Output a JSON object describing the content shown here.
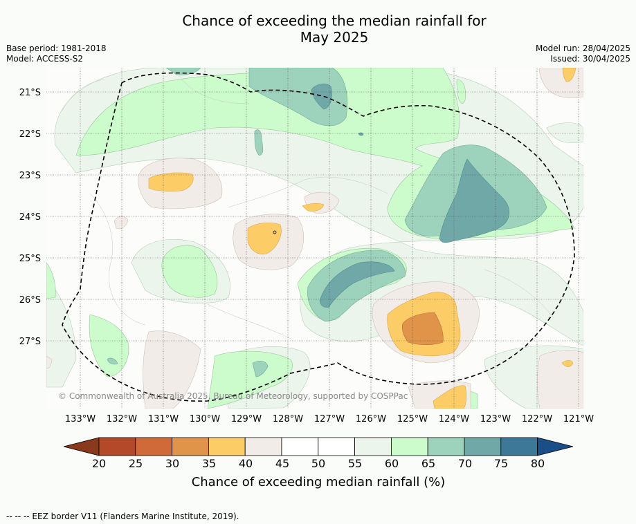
{
  "title_line1": "Chance of exceeding the median rainfall for",
  "title_line2": "May 2025",
  "base_period": "Base period: 1981-2018",
  "model": "Model: ACCESS-S2",
  "model_run": "Model run: 28/04/2025",
  "issued": "Issued: 30/04/2025",
  "copyright": "© Commonwealth of Australia 2025, Bureau of Meteorology, supported by COSPPac",
  "footer": "-- -- -- EEZ border V11 (Flanders Marine Institute, 2019).",
  "lat_labels": [
    "21°S",
    "22°S",
    "23°S",
    "24°S",
    "25°S",
    "26°S",
    "27°S"
  ],
  "lon_labels": [
    "133°W",
    "132°W",
    "131°W",
    "130°W",
    "129°W",
    "128°W",
    "127°W",
    "126°W",
    "125°W",
    "124°W",
    "123°W",
    "122°W",
    "121°W"
  ],
  "colorbar": {
    "title": "Chance of exceeding median rainfall (%)",
    "ticks": [
      "20",
      "25",
      "30",
      "35",
      "40",
      "45",
      "50",
      "55",
      "60",
      "65",
      "70",
      "75",
      "80"
    ],
    "colors": [
      "#8a3a1c",
      "#b4492a",
      "#d06a38",
      "#e0944a",
      "#fccc66",
      "#f2ece8",
      "#ffffff",
      "#ffffff",
      "#ecf5ec",
      "#ccfccc",
      "#9dd2bc",
      "#70a8a8",
      "#3e7898",
      "#1a4e88"
    ]
  }
}
